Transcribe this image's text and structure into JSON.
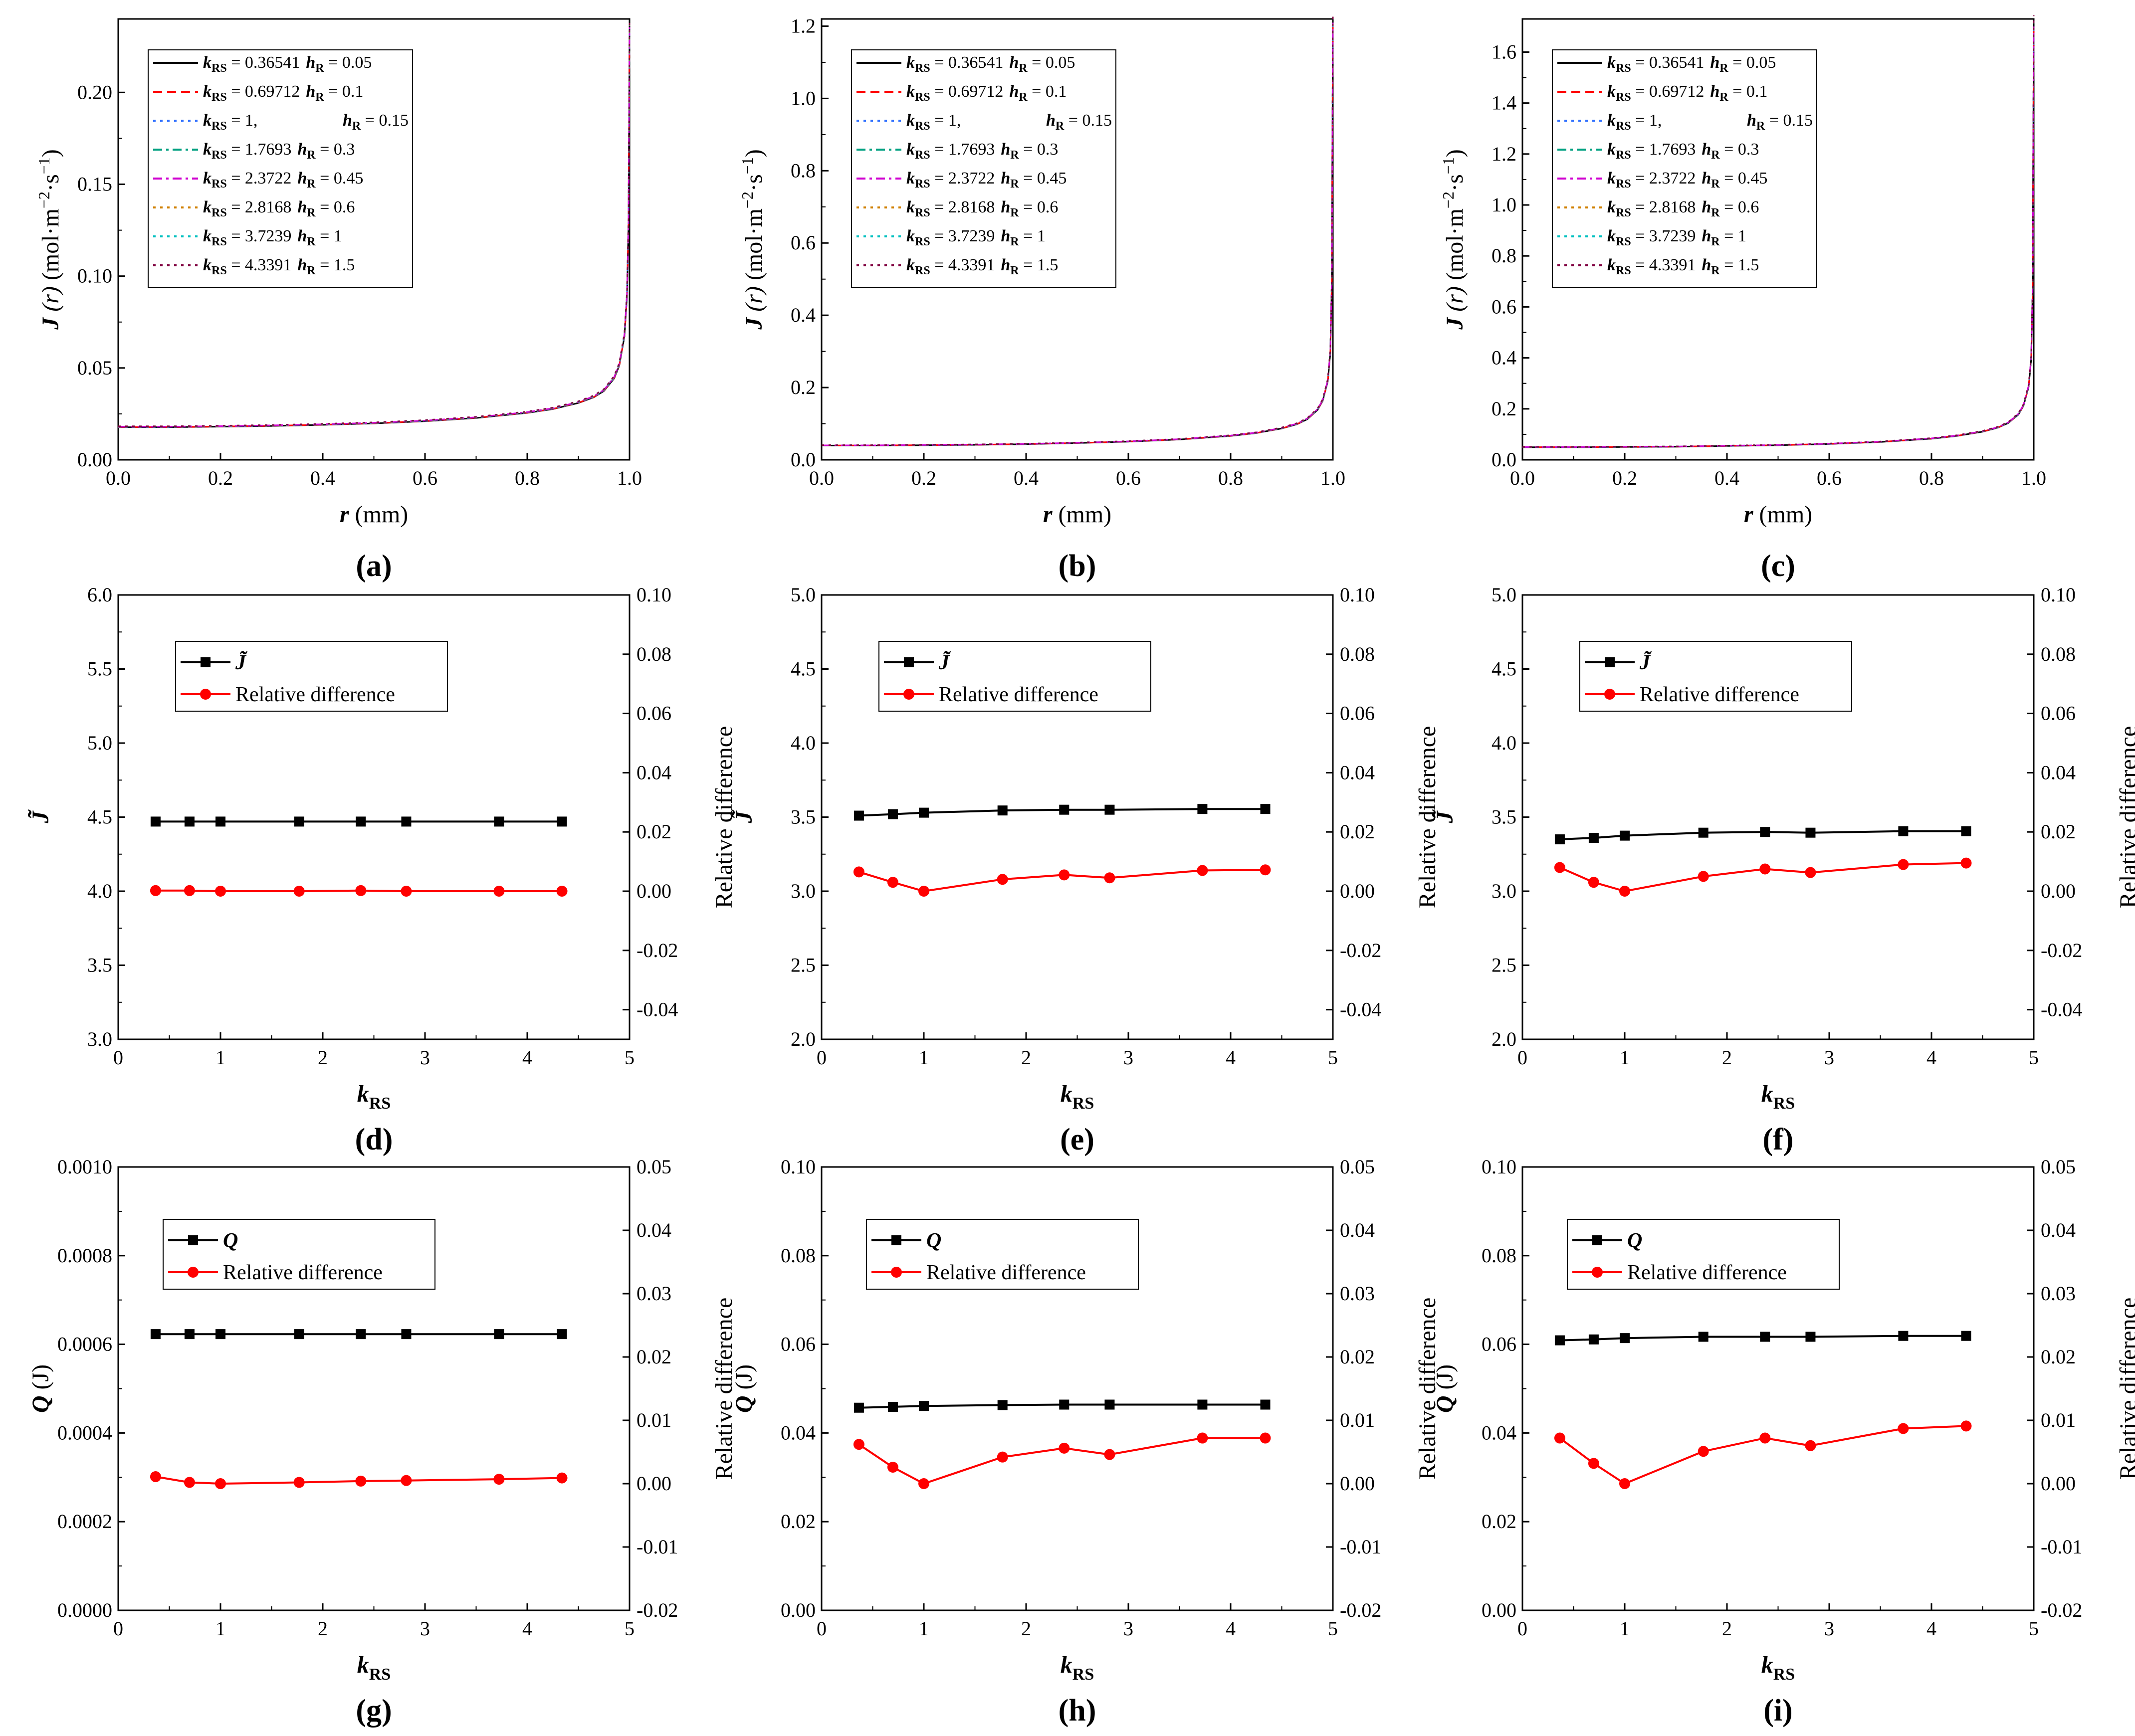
{
  "figure": {
    "legend_flux": [
      {
        "k": "0.36541",
        "h": "0.05",
        "color": "#000000",
        "dash": "solid"
      },
      {
        "k": "0.69712",
        "h": "0.1",
        "color": "#ff0000",
        "dash": "dash"
      },
      {
        "k": "1,",
        "h": "0.15",
        "color": "#3070ff",
        "dash": "dot"
      },
      {
        "k": "1.7693",
        "h": "0.3",
        "color": "#00a080",
        "dash": "dashdot"
      },
      {
        "k": "2.3722",
        "h": "0.45",
        "color": "#d000d0",
        "dash": "dashdot"
      },
      {
        "k": "2.8168",
        "h": "0.6",
        "color": "#d08000",
        "dash": "dot"
      },
      {
        "k": "3.7239",
        "h": "1",
        "color": "#00c0c0",
        "dash": "dot"
      },
      {
        "k": "4.3391",
        "h": "1.5",
        "color": "#800040",
        "dash": "dot"
      }
    ],
    "labels": {
      "k_var": "k",
      "k_sub": "RS",
      "h_var": "h",
      "h_sub": "R",
      "eq": " = ",
      "J_var": "J",
      "J_arg": " (r) ",
      "J_unit_a": "(mol·m",
      "J_exp1": "−2",
      "J_unit_b": "·s",
      "J_exp2": "−1",
      "J_unit_c": ")",
      "r_var": "r",
      "r_unit": " (mm)",
      "Jt": "J̃",
      "Q_var": "Q",
      "Q_unit": " (J)",
      "rel": "Relative difference"
    }
  },
  "chart_data": [
    {
      "id": "a",
      "caption": "(a)",
      "type": "line",
      "xlabel": "r (mm)",
      "ylabel": "J (r) (mol·m−2·s−1)",
      "xlim": [
        0,
        1
      ],
      "ylim": [
        0,
        0.24
      ],
      "xticks": [
        "0.0",
        "0.2",
        "0.4",
        "0.6",
        "0.8",
        "1.0"
      ],
      "yticks": [
        "0.00",
        "0.05",
        "0.10",
        "0.15",
        "0.20"
      ],
      "x": [
        0,
        0.1,
        0.2,
        0.3,
        0.4,
        0.5,
        0.6,
        0.7,
        0.8,
        0.85,
        0.9,
        0.93,
        0.95,
        0.97,
        0.98,
        0.99,
        0.995,
        0.998,
        1.0
      ],
      "y": [
        0.018,
        0.018,
        0.0183,
        0.0187,
        0.0193,
        0.0201,
        0.0213,
        0.0231,
        0.0259,
        0.028,
        0.0314,
        0.0345,
        0.038,
        0.045,
        0.052,
        0.068,
        0.09,
        0.13,
        0.235
      ]
    },
    {
      "id": "b",
      "caption": "(b)",
      "type": "line",
      "xlabel": "r (mm)",
      "ylabel": "J (r) (mol·m−2·s−1)",
      "xlim": [
        0,
        1
      ],
      "ylim": [
        0,
        1.22
      ],
      "xticks": [
        "0.0",
        "0.2",
        "0.4",
        "0.6",
        "0.8",
        "1.0"
      ],
      "yticks": [
        "0.0",
        "0.2",
        "0.4",
        "0.6",
        "0.8",
        "1.0",
        "1.2"
      ],
      "x": [
        0,
        0.1,
        0.2,
        0.3,
        0.4,
        0.5,
        0.6,
        0.7,
        0.8,
        0.85,
        0.9,
        0.93,
        0.95,
        0.97,
        0.98,
        0.99,
        0.995,
        0.998,
        1.0
      ],
      "y": [
        0.04,
        0.04,
        0.041,
        0.042,
        0.044,
        0.047,
        0.051,
        0.057,
        0.067,
        0.075,
        0.088,
        0.1,
        0.114,
        0.14,
        0.165,
        0.22,
        0.3,
        0.5,
        1.21
      ]
    },
    {
      "id": "c",
      "caption": "(c)",
      "type": "line",
      "xlabel": "r (mm)",
      "ylabel": "J (r) (mol·m−2·s−1)",
      "xlim": [
        0,
        1
      ],
      "ylim": [
        0,
        1.73
      ],
      "xticks": [
        "0.0",
        "0.2",
        "0.4",
        "0.6",
        "0.8",
        "1.0"
      ],
      "yticks": [
        "0.0",
        "0.2",
        "0.4",
        "0.6",
        "0.8",
        "1.0",
        "1.2",
        "1.4",
        "1.6"
      ],
      "x": [
        0,
        0.1,
        0.2,
        0.3,
        0.4,
        0.5,
        0.6,
        0.7,
        0.8,
        0.85,
        0.9,
        0.93,
        0.95,
        0.97,
        0.98,
        0.99,
        0.995,
        0.998,
        1.0
      ],
      "y": [
        0.05,
        0.05,
        0.051,
        0.052,
        0.055,
        0.058,
        0.063,
        0.071,
        0.084,
        0.095,
        0.112,
        0.128,
        0.146,
        0.18,
        0.215,
        0.29,
        0.4,
        0.68,
        1.72
      ]
    },
    {
      "id": "d",
      "caption": "(d)",
      "type": "line",
      "xlabel": "kRS",
      "ylabel": "J̃",
      "y2label": "Relative difference",
      "xlim": [
        0,
        5
      ],
      "ylim": [
        3,
        6
      ],
      "y2lim": [
        -0.05,
        0.1
      ],
      "xticks": [
        "0",
        "1",
        "2",
        "3",
        "4",
        "5"
      ],
      "yticks": [
        "3.0",
        "3.5",
        "4.0",
        "4.5",
        "5.0",
        "5.5",
        "6.0"
      ],
      "y2ticks": [
        "-0.04",
        "-0.02",
        "0.00",
        "0.02",
        "0.04",
        "0.06",
        "0.08",
        "0.10"
      ],
      "legend": [
        "J̃",
        "Relative difference"
      ],
      "x": [
        0.36541,
        0.69712,
        1,
        1.7693,
        2.3722,
        2.8168,
        3.7239,
        4.3391
      ],
      "series": [
        {
          "name": "J̃",
          "axis": "left",
          "values": [
            4.47,
            4.47,
            4.47,
            4.47,
            4.47,
            4.47,
            4.47,
            4.47
          ]
        },
        {
          "name": "Relative difference",
          "axis": "right",
          "values": [
            0.0002,
            0.0002,
            0.0,
            0.0,
            0.0002,
            0.0,
            0.0,
            0.0
          ]
        }
      ]
    },
    {
      "id": "e",
      "caption": "(e)",
      "type": "line",
      "xlabel": "kRS",
      "ylabel": "J̃",
      "y2label": "Relative difference",
      "xlim": [
        0,
        5
      ],
      "ylim": [
        2,
        5
      ],
      "y2lim": [
        -0.05,
        0.1
      ],
      "xticks": [
        "0",
        "1",
        "2",
        "3",
        "4",
        "5"
      ],
      "yticks": [
        "2.0",
        "2.5",
        "3.0",
        "3.5",
        "4.0",
        "4.5",
        "5.0"
      ],
      "y2ticks": [
        "-0.04",
        "-0.02",
        "0.00",
        "0.02",
        "0.04",
        "0.06",
        "0.08",
        "0.10"
      ],
      "legend": [
        "J̃",
        "Relative difference"
      ],
      "x": [
        0.36541,
        0.69712,
        1,
        1.7693,
        2.3722,
        2.8168,
        3.7239,
        4.3391
      ],
      "series": [
        {
          "name": "J̃",
          "axis": "left",
          "values": [
            3.51,
            3.52,
            3.53,
            3.545,
            3.55,
            3.55,
            3.555,
            3.555
          ]
        },
        {
          "name": "Relative difference",
          "axis": "right",
          "values": [
            0.0065,
            0.003,
            0.0,
            0.004,
            0.0055,
            0.0045,
            0.007,
            0.0072
          ]
        }
      ]
    },
    {
      "id": "f",
      "caption": "(f)",
      "type": "line",
      "xlabel": "kRS",
      "ylabel": "J̃",
      "y2label": "Relative difference",
      "xlim": [
        0,
        5
      ],
      "ylim": [
        2,
        5
      ],
      "y2lim": [
        -0.05,
        0.1
      ],
      "xticks": [
        "0",
        "1",
        "2",
        "3",
        "4",
        "5"
      ],
      "yticks": [
        "2.0",
        "2.5",
        "3.0",
        "3.5",
        "4.0",
        "4.5",
        "5.0"
      ],
      "y2ticks": [
        "-0.04",
        "-0.02",
        "0.00",
        "0.02",
        "0.04",
        "0.06",
        "0.08",
        "0.10"
      ],
      "legend": [
        "J̃",
        "Relative difference"
      ],
      "x": [
        0.36541,
        0.69712,
        1,
        1.7693,
        2.3722,
        2.8168,
        3.7239,
        4.3391
      ],
      "series": [
        {
          "name": "J̃",
          "axis": "left",
          "values": [
            3.35,
            3.36,
            3.375,
            3.395,
            3.4,
            3.395,
            3.405,
            3.405
          ]
        },
        {
          "name": "Relative difference",
          "axis": "right",
          "values": [
            0.008,
            0.003,
            0.0,
            0.005,
            0.0075,
            0.0063,
            0.009,
            0.0095
          ]
        }
      ]
    },
    {
      "id": "g",
      "caption": "(g)",
      "type": "line",
      "xlabel": "kRS",
      "ylabel": "Q (J)",
      "y2label": "Relative difference",
      "xlim": [
        0,
        5
      ],
      "ylim": [
        0,
        0.001
      ],
      "y2lim": [
        -0.02,
        0.05
      ],
      "xticks": [
        "0",
        "1",
        "2",
        "3",
        "4",
        "5"
      ],
      "yticks": [
        "0.0000",
        "0.0002",
        "0.0004",
        "0.0006",
        "0.0008",
        "0.0010"
      ],
      "y2ticks": [
        "-0.02",
        "-0.01",
        "0.00",
        "0.01",
        "0.02",
        "0.03",
        "0.04",
        "0.05"
      ],
      "legend": [
        "Q",
        "Relative difference"
      ],
      "x": [
        0.36541,
        0.69712,
        1,
        1.7693,
        2.3722,
        2.8168,
        3.7239,
        4.3391
      ],
      "series": [
        {
          "name": "Q",
          "axis": "left",
          "values": [
            0.000623,
            0.000623,
            0.000623,
            0.000623,
            0.000623,
            0.000623,
            0.000623,
            0.000623
          ]
        },
        {
          "name": "Relative difference",
          "axis": "right",
          "values": [
            0.0011,
            0.0002,
            0.0,
            0.0002,
            0.0004,
            0.0005,
            0.0007,
            0.0009
          ]
        }
      ]
    },
    {
      "id": "h",
      "caption": "(h)",
      "type": "line",
      "xlabel": "kRS",
      "ylabel": "Q (J)",
      "y2label": "Relative difference",
      "xlim": [
        0,
        5
      ],
      "ylim": [
        0,
        0.1
      ],
      "y2lim": [
        -0.02,
        0.05
      ],
      "xticks": [
        "0",
        "1",
        "2",
        "3",
        "4",
        "5"
      ],
      "yticks": [
        "0.00",
        "0.02",
        "0.04",
        "0.06",
        "0.08",
        "0.10"
      ],
      "y2ticks": [
        "-0.02",
        "-0.01",
        "0.00",
        "0.01",
        "0.02",
        "0.03",
        "0.04",
        "0.05"
      ],
      "legend": [
        "Q",
        "Relative difference"
      ],
      "x": [
        0.36541,
        0.69712,
        1,
        1.7693,
        2.3722,
        2.8168,
        3.7239,
        4.3391
      ],
      "series": [
        {
          "name": "Q",
          "axis": "left",
          "values": [
            0.0457,
            0.0459,
            0.0461,
            0.0463,
            0.0464,
            0.0464,
            0.0464,
            0.0464
          ]
        },
        {
          "name": "Relative difference",
          "axis": "right",
          "values": [
            0.0062,
            0.0026,
            0.0,
            0.0042,
            0.0056,
            0.0046,
            0.0072,
            0.0072
          ]
        }
      ]
    },
    {
      "id": "i",
      "caption": "(i)",
      "type": "line",
      "xlabel": "kRS",
      "ylabel": "Q (J)",
      "y2label": "Relative difference",
      "xlim": [
        0,
        5
      ],
      "ylim": [
        0,
        0.1
      ],
      "y2lim": [
        -0.02,
        0.05
      ],
      "xticks": [
        "0",
        "1",
        "2",
        "3",
        "4",
        "5"
      ],
      "yticks": [
        "0.00",
        "0.02",
        "0.04",
        "0.06",
        "0.08",
        "0.10"
      ],
      "y2ticks": [
        "-0.02",
        "-0.01",
        "0.00",
        "0.01",
        "0.02",
        "0.03",
        "0.04",
        "0.05"
      ],
      "legend": [
        "Q",
        "Relative difference"
      ],
      "x": [
        0.36541,
        0.69712,
        1,
        1.7693,
        2.3722,
        2.8168,
        3.7239,
        4.3391
      ],
      "series": [
        {
          "name": "Q",
          "axis": "left",
          "values": [
            0.0609,
            0.0611,
            0.0614,
            0.0617,
            0.0617,
            0.0617,
            0.0619,
            0.0619
          ]
        },
        {
          "name": "Relative difference",
          "axis": "right",
          "values": [
            0.0072,
            0.0032,
            0.0,
            0.0051,
            0.0072,
            0.006,
            0.0087,
            0.0091
          ]
        }
      ]
    }
  ]
}
